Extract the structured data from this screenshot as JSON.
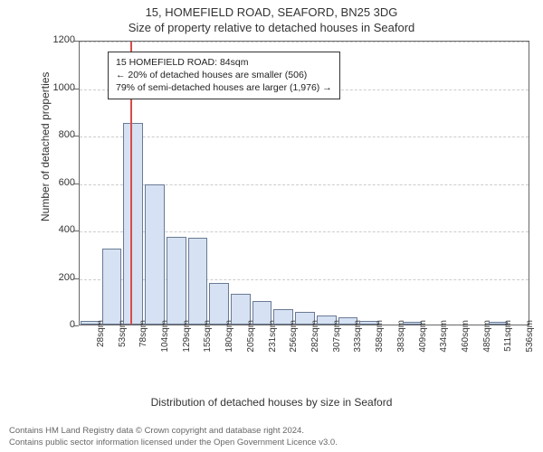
{
  "title_line1": "15, HOMEFIELD ROAD, SEAFORD, BN25 3DG",
  "title_line2": "Size of property relative to detached houses in Seaford",
  "ylabel": "Number of detached properties",
  "xlabel": "Distribution of detached houses by size in Seaford",
  "footer_line1": "Contains HM Land Registry data © Crown copyright and database right 2024.",
  "footer_line2": "Contains public sector information licensed under the Open Government Licence v3.0.",
  "annotation": {
    "line1": "15 HOMEFIELD ROAD: 84sqm",
    "line2": "← 20% of detached houses are smaller (506)",
    "line3": "79% of semi-detached houses are larger (1,976) →"
  },
  "chart": {
    "type": "histogram",
    "ylim": [
      0,
      1200
    ],
    "ytick_step": 200,
    "yticks": [
      0,
      200,
      400,
      600,
      800,
      1000,
      1200
    ],
    "xticks": [
      "28sqm",
      "53sqm",
      "78sqm",
      "104sqm",
      "129sqm",
      "155sqm",
      "180sqm",
      "205sqm",
      "231sqm",
      "256sqm",
      "282sqm",
      "307sqm",
      "333sqm",
      "358sqm",
      "383sqm",
      "409sqm",
      "434sqm",
      "460sqm",
      "485sqm",
      "511sqm",
      "536sqm"
    ],
    "bar_values": [
      15,
      320,
      850,
      590,
      370,
      365,
      175,
      130,
      100,
      65,
      55,
      40,
      30,
      15,
      0,
      10,
      0,
      0,
      0,
      10,
      0
    ],
    "bar_color": "#d6e2f3",
    "bar_border": "#6a7a94",
    "grid_color": "#cccccc",
    "axis_color": "#666666",
    "marker_color": "#d94c4c",
    "marker_position_pct": 11.2,
    "background_color": "#ffffff",
    "title_fontsize": 13,
    "label_fontsize": 12,
    "tick_fontsize": 11
  }
}
